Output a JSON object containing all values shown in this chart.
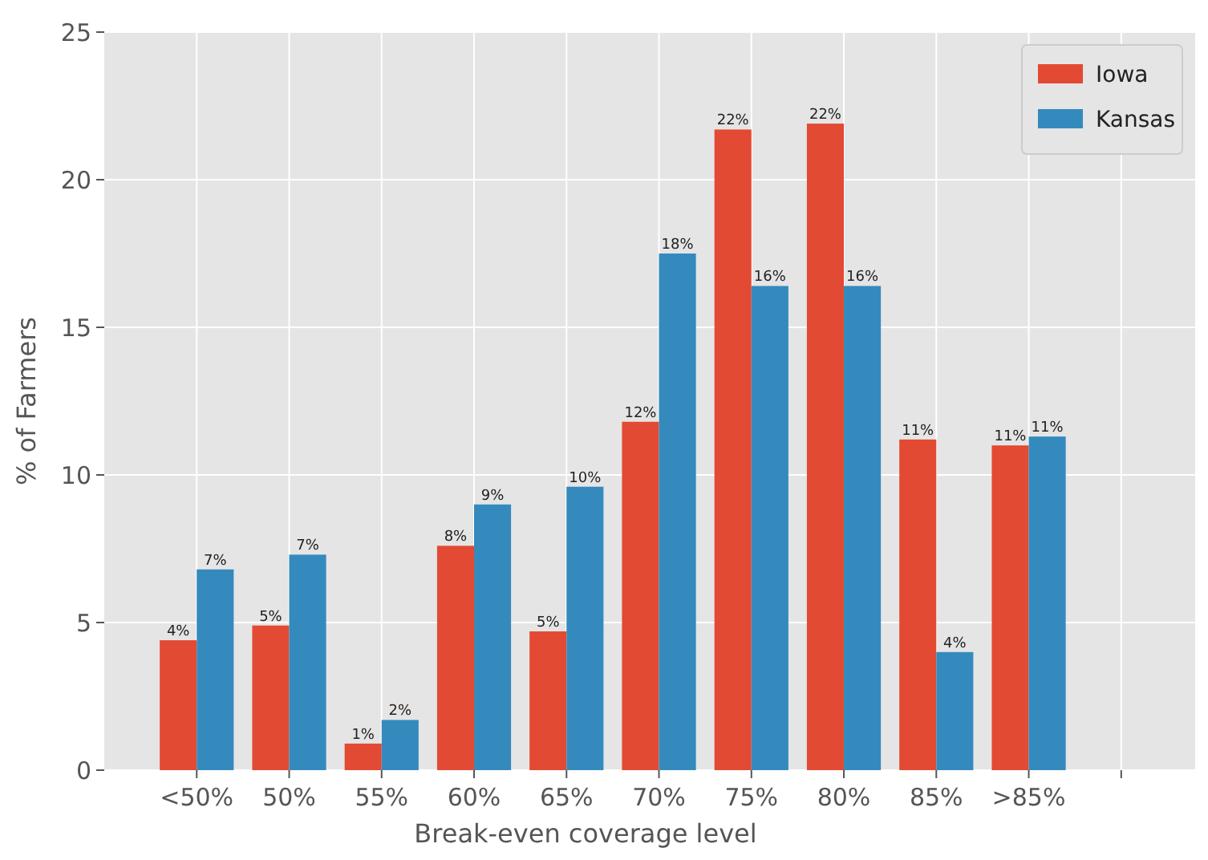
{
  "chart_data": {
    "type": "bar",
    "xlabel": "Break-even coverage level",
    "ylabel": "% of Farmers",
    "categories": [
      "<50%",
      "50%",
      "55%",
      "60%",
      "65%",
      "70%",
      "75%",
      "80%",
      "85%",
      ">85%",
      null
    ],
    "series": [
      {
        "name": "Iowa",
        "color": "#e24a33",
        "values": [
          4.4,
          4.9,
          0.9,
          7.6,
          4.7,
          11.8,
          21.7,
          21.9,
          11.2,
          11.0,
          null
        ],
        "value_labels": [
          "4%",
          "5%",
          "1%",
          "8%",
          "5%",
          "12%",
          "22%",
          "22%",
          "11%",
          "11%",
          null
        ]
      },
      {
        "name": "Kansas",
        "color": "#348abd",
        "values": [
          6.8,
          7.3,
          1.7,
          9.0,
          9.6,
          17.5,
          16.4,
          16.4,
          4.0,
          11.3,
          null
        ],
        "value_labels": [
          "7%",
          "7%",
          "2%",
          "9%",
          "10%",
          "18%",
          "16%",
          "16%",
          "4%",
          "11%",
          null
        ]
      }
    ],
    "ylim": [
      0,
      25
    ],
    "yticks": [
      0,
      5,
      10,
      15,
      20,
      25
    ],
    "grid": true,
    "legend": "top right"
  }
}
